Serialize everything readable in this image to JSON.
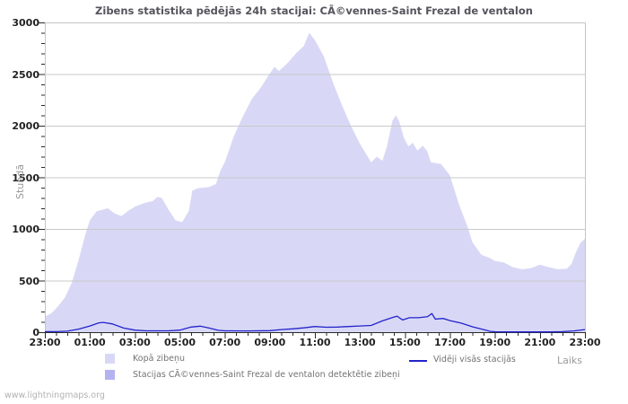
{
  "page": {
    "watermark": "www.lightningmaps.org"
  },
  "chart_data": {
    "type": "area",
    "title": "Zibens statistika pēdējās 24h stacijai: CÃ©vennes-Saint Frezal de ventalon",
    "ylabel": "Stundā",
    "xlabel": "Laiks",
    "ylim": [
      0,
      3000
    ],
    "xlim_hours": [
      0,
      24
    ],
    "y_major_step": 500,
    "y_minor_step": 100,
    "x_major_step": 2,
    "x_minor_step": 0.5,
    "x_tick_labels": [
      "23:00",
      "01:00",
      "03:00",
      "05:00",
      "07:00",
      "09:00",
      "11:00",
      "13:00",
      "15:00",
      "17:00",
      "19:00",
      "21:00",
      "23:00"
    ],
    "grid": "horizontal-only",
    "legend_position": "bottom",
    "series": [
      {
        "id": "total",
        "name": "Kopā zibeņu",
        "type": "area",
        "color": "#d8d8f6",
        "x": [
          0,
          0.3,
          0.6,
          0.9,
          1.2,
          1.5,
          1.8,
          2.0,
          2.3,
          2.8,
          3.1,
          3.4,
          3.7,
          4.0,
          4.4,
          4.8,
          5.0,
          5.2,
          5.5,
          5.8,
          6.1,
          6.4,
          6.55,
          6.8,
          7.3,
          7.6,
          7.8,
          8.0,
          8.4,
          8.8,
          9.2,
          9.6,
          10.0,
          10.2,
          10.4,
          10.8,
          11.2,
          11.5,
          11.75,
          12.0,
          12.4,
          12.8,
          13.2,
          13.6,
          14.0,
          14.5,
          14.75,
          15.0,
          15.2,
          15.45,
          15.6,
          15.75,
          15.95,
          16.15,
          16.35,
          16.55,
          16.8,
          17.0,
          17.15,
          17.6,
          18.0,
          18.4,
          18.8,
          19.0,
          19.4,
          19.8,
          20.0,
          20.4,
          20.8,
          21.2,
          21.6,
          22.0,
          22.4,
          22.8,
          23.2,
          23.4,
          23.6,
          23.8,
          24.0
        ],
        "values": [
          150,
          185,
          255,
          340,
          480,
          700,
          950,
          1085,
          1170,
          1200,
          1150,
          1125,
          1175,
          1215,
          1250,
          1270,
          1310,
          1300,
          1185,
          1085,
          1065,
          1175,
          1370,
          1395,
          1405,
          1435,
          1565,
          1650,
          1900,
          2090,
          2260,
          2370,
          2505,
          2570,
          2530,
          2610,
          2710,
          2770,
          2900,
          2830,
          2670,
          2420,
          2200,
          2000,
          1825,
          1645,
          1700,
          1660,
          1800,
          2050,
          2100,
          2040,
          1885,
          1800,
          1835,
          1760,
          1805,
          1750,
          1645,
          1630,
          1520,
          1240,
          1010,
          870,
          750,
          715,
          690,
          675,
          630,
          610,
          620,
          655,
          630,
          610,
          615,
          660,
          775,
          865,
          905
        ]
      },
      {
        "id": "station",
        "name": "Stacijas CÃ©vennes-Saint Frezal de ventalon detektētie zibeņi",
        "type": "area",
        "color": "#b3b3ef",
        "x": [
          0,
          24
        ],
        "values": [
          0,
          0
        ]
      },
      {
        "id": "avg",
        "name": "Vidēji visās stacijās",
        "type": "line",
        "color": "#2323cc",
        "x": [
          0,
          0.5,
          1.0,
          1.5,
          2.0,
          2.4,
          2.6,
          3.0,
          3.5,
          4.0,
          4.5,
          5.0,
          5.5,
          6.0,
          6.5,
          6.9,
          7.3,
          7.7,
          8.0,
          9.0,
          10.0,
          10.5,
          11.0,
          11.5,
          12.0,
          12.5,
          13.0,
          13.5,
          14.0,
          14.5,
          15.0,
          15.5,
          15.65,
          15.9,
          16.2,
          16.6,
          17.0,
          17.2,
          17.35,
          17.7,
          18.0,
          18.5,
          19.0,
          19.5,
          19.8,
          20.0,
          20.5,
          21.5,
          22.5,
          23.0,
          23.5,
          24.0
        ],
        "values": [
          5,
          5,
          10,
          30,
          60,
          90,
          95,
          80,
          40,
          20,
          13,
          13,
          13,
          20,
          50,
          58,
          40,
          18,
          13,
          12,
          15,
          25,
          32,
          42,
          55,
          48,
          50,
          55,
          60,
          65,
          110,
          145,
          155,
          118,
          140,
          140,
          150,
          180,
          127,
          133,
          112,
          88,
          52,
          25,
          8,
          4,
          3,
          3,
          3,
          5,
          12,
          25
        ]
      }
    ]
  }
}
